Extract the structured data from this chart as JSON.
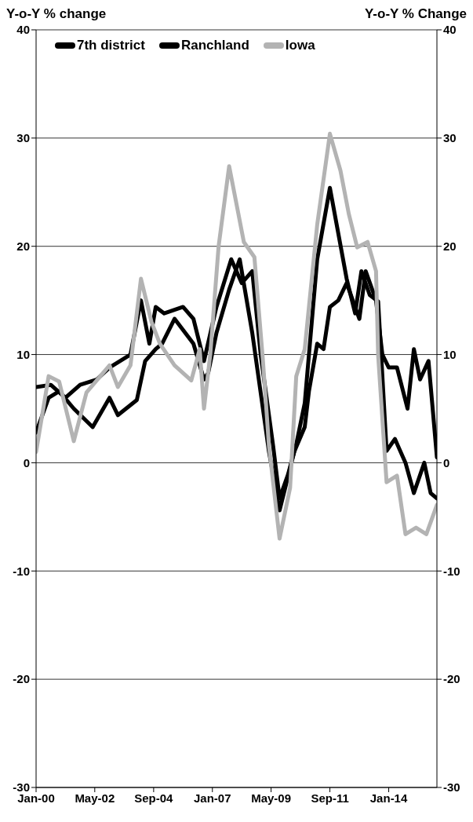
{
  "chart_data": {
    "type": "line",
    "ylabel": "Y-o-Y % change",
    "y2label": "Y-o-Y % Change",
    "legend": "top left",
    "grid": "y",
    "line_style": "solid",
    "marker": "none",
    "xlim": [
      "2000-01",
      "2015-12"
    ],
    "xticks": [
      {
        "value": "2000-01",
        "label": "Jan-00"
      },
      {
        "value": "2002-05",
        "label": "May-02"
      },
      {
        "value": "2004-09",
        "label": "Sep-04"
      },
      {
        "value": "2007-01",
        "label": "Jan-07"
      },
      {
        "value": "2009-05",
        "label": "May-09"
      },
      {
        "value": "2011-09",
        "label": "Sep-11"
      },
      {
        "value": "2014-01",
        "label": "Jan-14"
      }
    ],
    "ylim": [
      -30,
      40
    ],
    "yticks": [
      40,
      30,
      20,
      10,
      0,
      -10,
      -20,
      -30
    ],
    "y2lim": [
      -30,
      40
    ],
    "y2ticks": [
      40,
      30,
      20,
      10,
      0,
      -10,
      -20,
      -30
    ],
    "series": [
      {
        "name": "7th district",
        "color": "#000000",
        "x": [
          "2000-01",
          "2000-07",
          "2000-12",
          "2001-07",
          "2002-04",
          "2002-12",
          "2003-04",
          "2004-01",
          "2004-05",
          "2004-10",
          "2005-01",
          "2005-07",
          "2006-04",
          "2006-09",
          "2006-11",
          "2007-03",
          "2007-09",
          "2008-02",
          "2008-08",
          "2009-04",
          "2009-09",
          "2010-04",
          "2010-09",
          "2010-11",
          "2011-03",
          "2011-06",
          "2011-09",
          "2012-01",
          "2012-05",
          "2012-11",
          "2013-02",
          "2013-07",
          "2013-10",
          "2014-01",
          "2014-05",
          "2014-10",
          "2015-01",
          "2015-04",
          "2015-08",
          "2015-12"
        ],
        "values": [
          2.8,
          6,
          6.6,
          5,
          3.3,
          6,
          4.4,
          5.8,
          9.4,
          10.5,
          11,
          13.3,
          11,
          7.7,
          8.3,
          12,
          16,
          18.8,
          12,
          1,
          -4.4,
          1,
          3.3,
          6.6,
          11,
          10.5,
          14.4,
          15,
          16.6,
          13.3,
          17.7,
          15,
          10,
          8.8,
          8.8,
          5,
          10.5,
          7.7,
          9.4,
          0.5
        ]
      },
      {
        "name": "Ranchland",
        "color": "#000000",
        "x": [
          "2000-01",
          "2000-08",
          "2001-03",
          "2001-10",
          "2002-06",
          "2002-12",
          "2003-10",
          "2004-03",
          "2004-07",
          "2004-10",
          "2005-02",
          "2005-11",
          "2006-04",
          "2006-09",
          "2007-03",
          "2007-10",
          "2008-03",
          "2008-08",
          "2008-12",
          "2009-06",
          "2009-09",
          "2010-01",
          "2010-05",
          "2010-09",
          "2011-03",
          "2011-09",
          "2012-05",
          "2012-09",
          "2012-12",
          "2013-04",
          "2013-08",
          "2013-12",
          "2014-04",
          "2014-09",
          "2015-01",
          "2015-06",
          "2015-09",
          "2015-12"
        ],
        "values": [
          7,
          7.2,
          6,
          7.2,
          7.7,
          8.8,
          10,
          15,
          11,
          14.4,
          13.8,
          14.4,
          13.3,
          9.4,
          14.4,
          18.8,
          16.6,
          17.7,
          10,
          1.5,
          -3.3,
          -1.1,
          1.7,
          5.5,
          18.8,
          25.4,
          17,
          13.8,
          17.7,
          15.5,
          14.9,
          1.1,
          2.2,
          0,
          -2.8,
          0,
          -2.8,
          -3.3
        ]
      },
      {
        "name": "Iowa",
        "color": "#b3b3b3",
        "x": [
          "2000-01",
          "2000-07",
          "2000-12",
          "2001-07",
          "2002-01",
          "2002-12",
          "2003-04",
          "2003-10",
          "2004-03",
          "2004-08",
          "2004-12",
          "2005-07",
          "2006-03",
          "2006-07",
          "2006-09",
          "2006-12",
          "2007-04",
          "2007-09",
          "2008-04",
          "2008-09",
          "2009-01",
          "2009-04",
          "2009-09",
          "2010-02",
          "2010-05",
          "2010-09",
          "2010-11",
          "2011-03",
          "2011-09",
          "2012-02",
          "2012-06",
          "2012-10",
          "2013-03",
          "2013-07",
          "2013-08",
          "2013-12",
          "2014-05",
          "2014-09",
          "2015-02",
          "2015-07",
          "2015-12"
        ],
        "values": [
          1,
          8,
          7.5,
          2,
          6.5,
          9,
          7,
          9,
          17,
          13,
          11,
          9,
          7.6,
          10.5,
          5,
          10,
          20,
          27.4,
          20.4,
          19,
          9.6,
          1.5,
          -7,
          -2.3,
          8,
          10.5,
          14.4,
          22,
          30.4,
          27,
          23,
          19.9,
          20.4,
          17.7,
          9.9,
          -1.8,
          -1.2,
          -6.6,
          -6,
          -6.6,
          -3.9
        ]
      }
    ]
  }
}
